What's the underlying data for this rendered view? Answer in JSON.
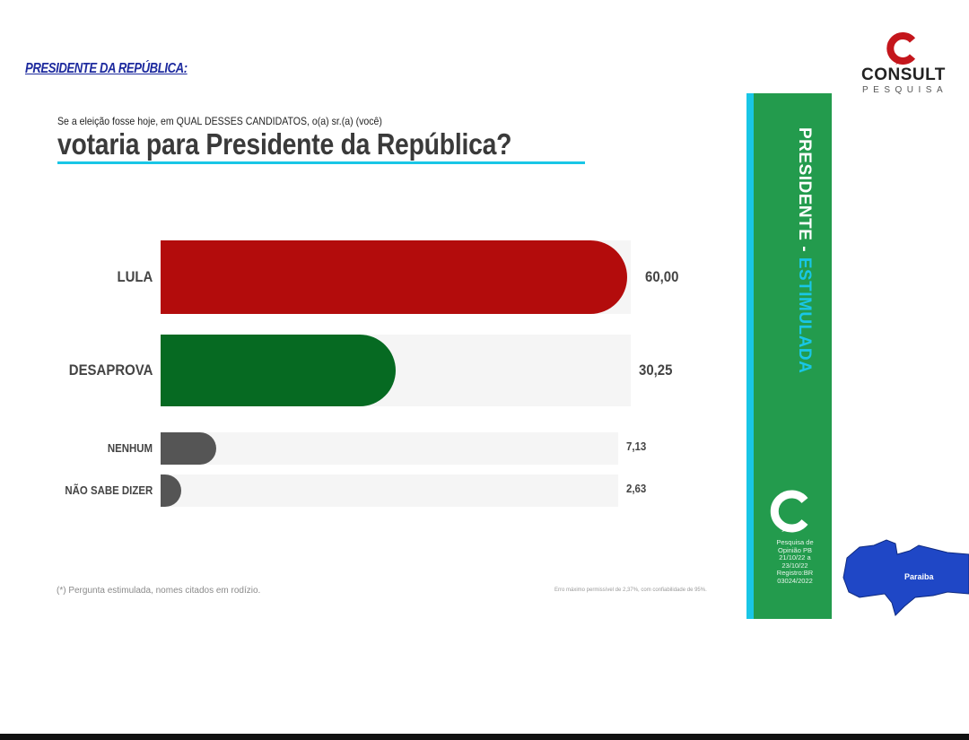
{
  "header": {
    "section_link": "PRESIDENTE DA REPÚBLICA:"
  },
  "question": {
    "line1": "Se a eleição fosse hoje, em QUAL DESSES CANDIDATOS,  o(a) sr.(a) (você)",
    "headline": "votaria para Presidente da República?"
  },
  "chart_data": {
    "type": "bar",
    "orientation": "horizontal",
    "categories": [
      "LULA",
      "DESAPROVA",
      "NENHUM",
      "NÃO SABE DIZER"
    ],
    "values": [
      60.0,
      30.25,
      7.13,
      2.63
    ],
    "value_labels": [
      "60,00",
      "30,25",
      "7,13",
      "2,63"
    ],
    "colors": [
      "#b30c0c",
      "#066a22",
      "#555555",
      "#555555"
    ],
    "xlim": [
      0,
      60
    ],
    "title": "",
    "xlabel": "",
    "ylabel": ""
  },
  "footer": {
    "note": "(*) Pergunta estimulada, nomes citados em rodízio.",
    "margin_of_error": "Erro máximo permissível de  2,37%, com confiabilidade de 95%."
  },
  "side_panel": {
    "title_part1": "PRESIDENTE - ",
    "title_part2": "ESTIMULADA",
    "info_lines": [
      "Pesquisa de",
      "Opinião PB",
      "21/10/22 a",
      "23/10/22",
      "Registro:BR",
      "03024/2022"
    ]
  },
  "logo": {
    "word": "CONSULT",
    "sub": "PESQUISA"
  },
  "map": {
    "label": "Paraiba"
  },
  "colors": {
    "accent": "#19c6e6",
    "panel_green": "#239b4d",
    "lula_red": "#b30c0c",
    "desaprova_green": "#066a22"
  }
}
